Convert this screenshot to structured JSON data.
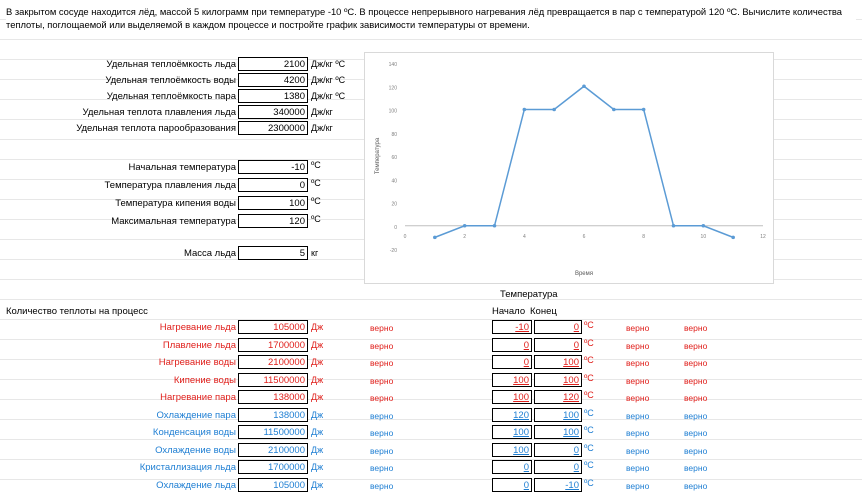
{
  "task": "В закрытом сосуде находится лёд, массой 5 килограмм при температуре -10 ºС. В процессе непрерывного нагревания лёд превращается в пар с температурой 120 ºС. Вычислите количества теплоты, поглощаемой или выделяемой в каждом процессе и постройте график зависимости температуры от времени.",
  "constants": [
    {
      "label": "Удельная теплоёмкость льда",
      "value": "2100",
      "unit": "Дж/кг ºС"
    },
    {
      "label": "Удельная теплоёмкость воды",
      "value": "4200",
      "unit": "Дж/кг ºС"
    },
    {
      "label": "Удельная теплоёмкость пара",
      "value": "1380",
      "unit": "Дж/кг ºС"
    },
    {
      "label": "Удельная теплота плавления льда",
      "value": "340000",
      "unit": "Дж/кг"
    },
    {
      "label": "Удельная теплота парообразования",
      "value": "2300000",
      "unit": "Дж/кг"
    }
  ],
  "temps": [
    {
      "label": "Начальная температура",
      "value": "-10",
      "unit": "ºС"
    },
    {
      "label": "Температура плавления льда",
      "value": "0",
      "unit": "ºС"
    },
    {
      "label": "Температура кипения воды",
      "value": "100",
      "unit": "ºС"
    },
    {
      "label": "Максимальная температура",
      "value": "120",
      "unit": "ºС"
    }
  ],
  "mass": {
    "label": "Масса льда",
    "value": "5",
    "unit": "кг"
  },
  "headers": {
    "heat": "Количество теплоты на процесс",
    "temperature": "Температура",
    "start": "Начало",
    "end": "Конец"
  },
  "processes": [
    {
      "name": "Нагревание льда",
      "q": "105000",
      "unit": "Дж",
      "check1": "верно",
      "t0": "-10",
      "t1": "0",
      "tu": "ºС",
      "c2": "верно",
      "c3": "верно",
      "color": "red"
    },
    {
      "name": "Плавление льда",
      "q": "1700000",
      "unit": "Дж",
      "check1": "верно",
      "t0": "0",
      "t1": "0",
      "tu": "ºС",
      "c2": "верно",
      "c3": "верно",
      "color": "red"
    },
    {
      "name": "Нагревание воды",
      "q": "2100000",
      "unit": "Дж",
      "check1": "верно",
      "t0": "0",
      "t1": "100",
      "tu": "ºС",
      "c2": "верно",
      "c3": "верно",
      "color": "red"
    },
    {
      "name": "Кипение воды",
      "q": "11500000",
      "unit": "Дж",
      "check1": "верно",
      "t0": "100",
      "t1": "100",
      "tu": "ºС",
      "c2": "верно",
      "c3": "верно",
      "color": "red"
    },
    {
      "name": "Нагревание пара",
      "q": "138000",
      "unit": "Дж",
      "check1": "верно",
      "t0": "100",
      "t1": "120",
      "tu": "ºС",
      "c2": "верно",
      "c3": "верно",
      "color": "red"
    },
    {
      "name": "Охлаждение пара",
      "q": "138000",
      "unit": "Дж",
      "check1": "верно",
      "t0": "120",
      "t1": "100",
      "tu": "ºС",
      "c2": "верно",
      "c3": "верно",
      "color": "blue"
    },
    {
      "name": "Конденсация воды",
      "q": "11500000",
      "unit": "Дж",
      "check1": "верно",
      "t0": "100",
      "t1": "100",
      "tu": "ºС",
      "c2": "верно",
      "c3": "верно",
      "color": "blue"
    },
    {
      "name": "Охлаждение воды",
      "q": "2100000",
      "unit": "Дж",
      "check1": "верно",
      "t0": "100",
      "t1": "0",
      "tu": "ºС",
      "c2": "верно",
      "c3": "верно",
      "color": "blue"
    },
    {
      "name": "Кристаллизация льда",
      "q": "1700000",
      "unit": "Дж",
      "check1": "верно",
      "t0": "0",
      "t1": "0",
      "tu": "ºС",
      "c2": "верно",
      "c3": "верно",
      "color": "blue"
    },
    {
      "name": "Охлаждение льда",
      "q": "105000",
      "unit": "Дж",
      "check1": "верно",
      "t0": "0",
      "t1": "-10",
      "tu": "ºС",
      "c2": "верно",
      "c3": "верно",
      "color": "blue"
    }
  ],
  "colors": {
    "red": "#e0201c",
    "blue": "#1f7fd3",
    "line": "#5b9bd5"
  },
  "chart_data": {
    "type": "line",
    "title": "",
    "xlabel": "Время",
    "ylabel": "Температура",
    "x": [
      1,
      2,
      3,
      4,
      5,
      6,
      7,
      8,
      9,
      10,
      11
    ],
    "series": [
      {
        "values": [
          -10,
          0,
          0,
          100,
          100,
          120,
          100,
          100,
          0,
          0,
          -10
        ]
      }
    ],
    "xticks": [
      "0",
      "2",
      "4",
      "6",
      "8",
      "10",
      "12"
    ],
    "yticks": [
      "-20",
      "0",
      "20",
      "40",
      "60",
      "80",
      "100",
      "120",
      "140"
    ],
    "xlim": [
      0,
      12
    ],
    "ylim": [
      -20,
      140
    ],
    "grid": false
  }
}
